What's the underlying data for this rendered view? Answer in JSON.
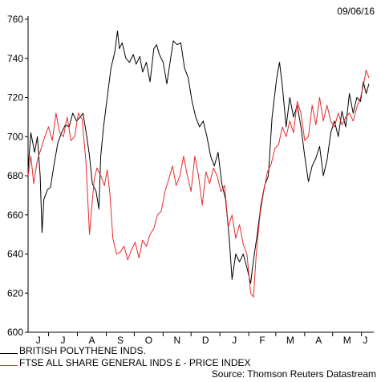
{
  "date_stamp": "09/06/16",
  "source": "Source: Thomson Reuters Datastream",
  "colors": {
    "series_1": "#000000",
    "series_2": "#e8292b"
  },
  "chart_data": {
    "type": "line",
    "title": "",
    "xlabel": "",
    "ylabel": "",
    "ylim": [
      600,
      760
    ],
    "y_ticks": [
      600,
      620,
      640,
      660,
      680,
      700,
      720,
      740,
      760
    ],
    "x_tick_labels": [
      "J",
      "J",
      "A",
      "S",
      "O",
      "N",
      "D",
      "J",
      "F",
      "M",
      "A",
      "M",
      "J"
    ],
    "x_domain": [
      "2015-06-09",
      "2016-06-09"
    ],
    "grid": false,
    "legend_position": "bottom-left",
    "series": [
      {
        "name": "BRITISH POLYTHENE INDS.",
        "color": "#000000",
        "points": [
          [
            "2015-06-09",
            683
          ],
          [
            "2015-06-12",
            702
          ],
          [
            "2015-06-16",
            692
          ],
          [
            "2015-06-19",
            700
          ],
          [
            "2015-06-22",
            680
          ],
          [
            "2015-06-24",
            651
          ],
          [
            "2015-06-26",
            668
          ],
          [
            "2015-06-30",
            673
          ],
          [
            "2015-07-03",
            674
          ],
          [
            "2015-07-07",
            686
          ],
          [
            "2015-07-11",
            697
          ],
          [
            "2015-07-15",
            702
          ],
          [
            "2015-07-19",
            706
          ],
          [
            "2015-07-23",
            705
          ],
          [
            "2015-07-27",
            712
          ],
          [
            "2015-07-31",
            708
          ],
          [
            "2015-08-04",
            710
          ],
          [
            "2015-08-07",
            712
          ],
          [
            "2015-08-11",
            700
          ],
          [
            "2015-08-14",
            690
          ],
          [
            "2015-08-17",
            676
          ],
          [
            "2015-08-21",
            672
          ],
          [
            "2015-08-24",
            663
          ],
          [
            "2015-08-26",
            690
          ],
          [
            "2015-08-29",
            705
          ],
          [
            "2015-09-02",
            720
          ],
          [
            "2015-09-06",
            735
          ],
          [
            "2015-09-10",
            743
          ],
          [
            "2015-09-13",
            754
          ],
          [
            "2015-09-15",
            745
          ],
          [
            "2015-09-18",
            748
          ],
          [
            "2015-09-22",
            740
          ],
          [
            "2015-09-26",
            738
          ],
          [
            "2015-09-30",
            742
          ],
          [
            "2015-10-03",
            737
          ],
          [
            "2015-10-07",
            741
          ],
          [
            "2015-10-10",
            733
          ],
          [
            "2015-10-14",
            738
          ],
          [
            "2015-10-18",
            728
          ],
          [
            "2015-10-22",
            745
          ],
          [
            "2015-10-25",
            747
          ],
          [
            "2015-10-28",
            742
          ],
          [
            "2015-11-01",
            738
          ],
          [
            "2015-11-05",
            727
          ],
          [
            "2015-11-09",
            740
          ],
          [
            "2015-11-12",
            749
          ],
          [
            "2015-11-16",
            747
          ],
          [
            "2015-11-20",
            748
          ],
          [
            "2015-11-24",
            735
          ],
          [
            "2015-11-28",
            730
          ],
          [
            "2015-12-02",
            718
          ],
          [
            "2015-12-06",
            710
          ],
          [
            "2015-12-10",
            705
          ],
          [
            "2015-12-14",
            708
          ],
          [
            "2015-12-18",
            700
          ],
          [
            "2015-12-22",
            690
          ],
          [
            "2015-12-26",
            685
          ],
          [
            "2015-12-30",
            692
          ],
          [
            "2016-01-03",
            676
          ],
          [
            "2016-01-07",
            668
          ],
          [
            "2016-01-11",
            648
          ],
          [
            "2016-01-14",
            627
          ],
          [
            "2016-01-18",
            640
          ],
          [
            "2016-01-22",
            636
          ],
          [
            "2016-01-26",
            640
          ],
          [
            "2016-01-30",
            633
          ],
          [
            "2016-02-03",
            625
          ],
          [
            "2016-02-06",
            637
          ],
          [
            "2016-02-10",
            650
          ],
          [
            "2016-02-14",
            665
          ],
          [
            "2016-02-18",
            675
          ],
          [
            "2016-02-22",
            680
          ],
          [
            "2016-02-26",
            710
          ],
          [
            "2016-03-02",
            730
          ],
          [
            "2016-03-05",
            738
          ],
          [
            "2016-03-08",
            726
          ],
          [
            "2016-03-12",
            705
          ],
          [
            "2016-03-16",
            720
          ],
          [
            "2016-03-20",
            710
          ],
          [
            "2016-03-24",
            716
          ],
          [
            "2016-03-28",
            705
          ],
          [
            "2016-04-01",
            690
          ],
          [
            "2016-04-05",
            677
          ],
          [
            "2016-04-09",
            685
          ],
          [
            "2016-04-13",
            689
          ],
          [
            "2016-04-17",
            695
          ],
          [
            "2016-04-21",
            680
          ],
          [
            "2016-04-25",
            688
          ],
          [
            "2016-04-29",
            702
          ],
          [
            "2016-05-03",
            708
          ],
          [
            "2016-05-07",
            700
          ],
          [
            "2016-05-11",
            713
          ],
          [
            "2016-05-15",
            705
          ],
          [
            "2016-05-19",
            722
          ],
          [
            "2016-05-23",
            712
          ],
          [
            "2016-05-27",
            720
          ],
          [
            "2016-05-31",
            718
          ],
          [
            "2016-06-03",
            728
          ],
          [
            "2016-06-06",
            722
          ],
          [
            "2016-06-09",
            727
          ]
        ]
      },
      {
        "name": "FTSE ALL SHARE GENERAL INDS £ - PRICE INDEX",
        "color": "#e8292b",
        "points": [
          [
            "2015-06-09",
            680
          ],
          [
            "2015-06-12",
            690
          ],
          [
            "2015-06-15",
            676
          ],
          [
            "2015-06-19",
            688
          ],
          [
            "2015-06-23",
            694
          ],
          [
            "2015-06-27",
            700
          ],
          [
            "2015-07-01",
            705
          ],
          [
            "2015-07-05",
            698
          ],
          [
            "2015-07-09",
            712
          ],
          [
            "2015-07-13",
            702
          ],
          [
            "2015-07-17",
            700
          ],
          [
            "2015-07-21",
            710
          ],
          [
            "2015-07-25",
            698
          ],
          [
            "2015-07-29",
            700
          ],
          [
            "2015-08-02",
            712
          ],
          [
            "2015-08-06",
            709
          ],
          [
            "2015-08-10",
            688
          ],
          [
            "2015-08-14",
            650
          ],
          [
            "2015-08-16",
            662
          ],
          [
            "2015-08-19",
            678
          ],
          [
            "2015-08-22",
            684
          ],
          [
            "2015-08-26",
            680
          ],
          [
            "2015-08-30",
            675
          ],
          [
            "2015-09-02",
            683
          ],
          [
            "2015-09-05",
            670
          ],
          [
            "2015-09-08",
            648
          ],
          [
            "2015-09-12",
            640
          ],
          [
            "2015-09-16",
            641
          ],
          [
            "2015-09-20",
            644
          ],
          [
            "2015-09-24",
            637
          ],
          [
            "2015-09-28",
            642
          ],
          [
            "2015-10-02",
            646
          ],
          [
            "2015-10-06",
            638
          ],
          [
            "2015-10-10",
            647
          ],
          [
            "2015-10-14",
            644
          ],
          [
            "2015-10-18",
            650
          ],
          [
            "2015-10-22",
            653
          ],
          [
            "2015-10-26",
            660
          ],
          [
            "2015-10-30",
            662
          ],
          [
            "2015-11-03",
            672
          ],
          [
            "2015-11-07",
            678
          ],
          [
            "2015-11-11",
            685
          ],
          [
            "2015-11-15",
            675
          ],
          [
            "2015-11-19",
            680
          ],
          [
            "2015-11-23",
            690
          ],
          [
            "2015-11-27",
            680
          ],
          [
            "2015-12-01",
            672
          ],
          [
            "2015-12-05",
            690
          ],
          [
            "2015-12-09",
            680
          ],
          [
            "2015-12-13",
            665
          ],
          [
            "2015-12-17",
            682
          ],
          [
            "2015-12-21",
            676
          ],
          [
            "2015-12-25",
            684
          ],
          [
            "2015-12-29",
            680
          ],
          [
            "2016-01-02",
            672
          ],
          [
            "2016-01-06",
            675
          ],
          [
            "2016-01-10",
            654
          ],
          [
            "2016-01-14",
            660
          ],
          [
            "2016-01-18",
            648
          ],
          [
            "2016-01-22",
            655
          ],
          [
            "2016-01-26",
            645
          ],
          [
            "2016-01-30",
            640
          ],
          [
            "2016-02-03",
            620
          ],
          [
            "2016-02-06",
            618
          ],
          [
            "2016-02-09",
            640
          ],
          [
            "2016-02-13",
            660
          ],
          [
            "2016-02-17",
            672
          ],
          [
            "2016-02-21",
            682
          ],
          [
            "2016-02-25",
            686
          ],
          [
            "2016-02-29",
            694
          ],
          [
            "2016-03-04",
            696
          ],
          [
            "2016-03-08",
            705
          ],
          [
            "2016-03-12",
            700
          ],
          [
            "2016-03-16",
            708
          ],
          [
            "2016-03-20",
            702
          ],
          [
            "2016-03-24",
            718
          ],
          [
            "2016-03-28",
            712
          ],
          [
            "2016-04-01",
            698
          ],
          [
            "2016-04-05",
            700
          ],
          [
            "2016-04-09",
            716
          ],
          [
            "2016-04-13",
            706
          ],
          [
            "2016-04-17",
            720
          ],
          [
            "2016-04-21",
            708
          ],
          [
            "2016-04-25",
            716
          ],
          [
            "2016-04-29",
            708
          ],
          [
            "2016-05-03",
            705
          ],
          [
            "2016-05-07",
            712
          ],
          [
            "2016-05-11",
            706
          ],
          [
            "2016-05-15",
            710
          ],
          [
            "2016-05-19",
            712
          ],
          [
            "2016-05-23",
            708
          ],
          [
            "2016-05-27",
            715
          ],
          [
            "2016-05-31",
            720
          ],
          [
            "2016-06-03",
            726
          ],
          [
            "2016-06-06",
            734
          ],
          [
            "2016-06-09",
            730
          ]
        ]
      }
    ]
  }
}
